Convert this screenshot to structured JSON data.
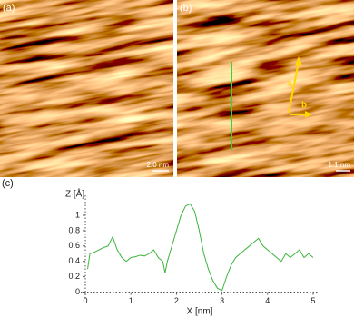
{
  "panels": [
    {
      "label": "(a)",
      "scale_bar": "2.0 nm"
    },
    {
      "label": "(b)",
      "scale_bar": "1.1 nm",
      "annotations": [
        "a",
        "b"
      ]
    }
  ],
  "chart_data": {
    "type": "line",
    "panel_label": "(c)",
    "y_label": "Z [Å]",
    "x_label": "X [nm]",
    "x": [
      0.05,
      0.1,
      0.2,
      0.3,
      0.4,
      0.5,
      0.6,
      0.7,
      0.8,
      0.9,
      1.0,
      1.1,
      1.2,
      1.3,
      1.4,
      1.5,
      1.6,
      1.7,
      1.75,
      1.8,
      1.9,
      2.0,
      2.1,
      2.2,
      2.3,
      2.4,
      2.5,
      2.6,
      2.7,
      2.8,
      2.9,
      3.0,
      3.1,
      3.2,
      3.3,
      3.4,
      3.5,
      3.6,
      3.7,
      3.8,
      3.9,
      4.0,
      4.1,
      4.2,
      4.3,
      4.4,
      4.5,
      4.6,
      4.7,
      4.8,
      4.9,
      5.0
    ],
    "series": [
      {
        "color": "#3cb43c",
        "values": [
          0.3,
          0.5,
          0.52,
          0.55,
          0.58,
          0.6,
          0.72,
          0.55,
          0.45,
          0.4,
          0.45,
          0.46,
          0.48,
          0.47,
          0.5,
          0.55,
          0.45,
          0.4,
          0.25,
          0.4,
          0.6,
          0.8,
          1.0,
          1.12,
          1.15,
          1.05,
          0.8,
          0.5,
          0.3,
          0.15,
          0.05,
          0.02,
          0.2,
          0.35,
          0.45,
          0.5,
          0.55,
          0.6,
          0.65,
          0.7,
          0.6,
          0.55,
          0.5,
          0.45,
          0.4,
          0.5,
          0.45,
          0.5,
          0.55,
          0.45,
          0.5,
          0.45
        ]
      }
    ],
    "xlim": [
      -0.1,
      5.1
    ],
    "ylim": [
      -0.1,
      1.26
    ],
    "xticks": [
      0,
      1,
      2,
      3,
      4,
      5
    ],
    "yticks": [
      0,
      0.2,
      0.4,
      0.6,
      0.8,
      1
    ]
  }
}
